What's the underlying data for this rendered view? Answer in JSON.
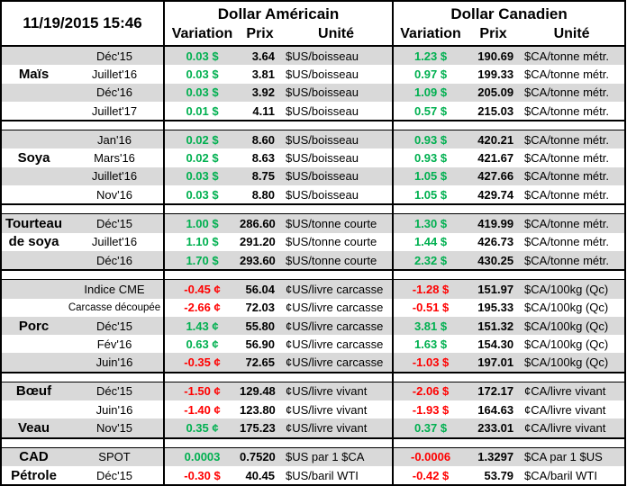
{
  "header": {
    "timestamp": "11/19/2015 15:46",
    "usd_title": "Dollar Américain",
    "cad_title": "Dollar Canadien",
    "variation_label": "Variation",
    "price_label": "Prix",
    "unit_label": "Unité"
  },
  "colors": {
    "up": "#00b050",
    "down": "#ff0000",
    "shade": "#d9d9d9"
  },
  "groups": [
    {
      "rows": [
        {
          "label": "",
          "contract": "Déc'15",
          "us_var": "0.03 $",
          "us_dir": "up",
          "us_price": "3.64",
          "us_unit": "$US/boisseau",
          "ca_var": "1.23 $",
          "ca_dir": "up",
          "ca_price": "190.69",
          "ca_unit": "$CA/tonne métr."
        },
        {
          "label": "Maïs",
          "contract": "Juillet'16",
          "us_var": "0.03 $",
          "us_dir": "up",
          "us_price": "3.81",
          "us_unit": "$US/boisseau",
          "ca_var": "0.97 $",
          "ca_dir": "up",
          "ca_price": "199.33",
          "ca_unit": "$CA/tonne métr."
        },
        {
          "label": "",
          "contract": "Déc'16",
          "us_var": "0.03 $",
          "us_dir": "up",
          "us_price": "3.92",
          "us_unit": "$US/boisseau",
          "ca_var": "1.09 $",
          "ca_dir": "up",
          "ca_price": "205.09",
          "ca_unit": "$CA/tonne métr."
        },
        {
          "label": "",
          "contract": "Juillet'17",
          "us_var": "0.01 $",
          "us_dir": "up",
          "us_price": "4.11",
          "us_unit": "$US/boisseau",
          "ca_var": "0.57 $",
          "ca_dir": "up",
          "ca_price": "215.03",
          "ca_unit": "$CA/tonne métr."
        }
      ]
    },
    {
      "rows": [
        {
          "label": "",
          "contract": "Jan'16",
          "us_var": "0.02 $",
          "us_dir": "up",
          "us_price": "8.60",
          "us_unit": "$US/boisseau",
          "ca_var": "0.93 $",
          "ca_dir": "up",
          "ca_price": "420.21",
          "ca_unit": "$CA/tonne métr."
        },
        {
          "label": "Soya",
          "contract": "Mars'16",
          "us_var": "0.02 $",
          "us_dir": "up",
          "us_price": "8.63",
          "us_unit": "$US/boisseau",
          "ca_var": "0.93 $",
          "ca_dir": "up",
          "ca_price": "421.67",
          "ca_unit": "$CA/tonne métr."
        },
        {
          "label": "",
          "contract": "Juillet'16",
          "us_var": "0.03 $",
          "us_dir": "up",
          "us_price": "8.75",
          "us_unit": "$US/boisseau",
          "ca_var": "1.05 $",
          "ca_dir": "up",
          "ca_price": "427.66",
          "ca_unit": "$CA/tonne métr."
        },
        {
          "label": "",
          "contract": "Nov'16",
          "us_var": "0.03 $",
          "us_dir": "up",
          "us_price": "8.80",
          "us_unit": "$US/boisseau",
          "ca_var": "1.05 $",
          "ca_dir": "up",
          "ca_price": "429.74",
          "ca_unit": "$CA/tonne métr."
        }
      ]
    },
    {
      "rows": [
        {
          "label": "Tourteau",
          "contract": "Déc'15",
          "us_var": "1.00 $",
          "us_dir": "up",
          "us_price": "286.60",
          "us_unit": "$US/tonne courte",
          "ca_var": "1.30 $",
          "ca_dir": "up",
          "ca_price": "419.99",
          "ca_unit": "$CA/tonne métr."
        },
        {
          "label": "de soya",
          "contract": "Juillet'16",
          "us_var": "1.10 $",
          "us_dir": "up",
          "us_price": "291.20",
          "us_unit": "$US/tonne courte",
          "ca_var": "1.44 $",
          "ca_dir": "up",
          "ca_price": "426.73",
          "ca_unit": "$CA/tonne métr."
        },
        {
          "label": "",
          "contract": "Déc'16",
          "us_var": "1.70 $",
          "us_dir": "up",
          "us_price": "293.60",
          "us_unit": "$US/tonne courte",
          "ca_var": "2.32 $",
          "ca_dir": "up",
          "ca_price": "430.25",
          "ca_unit": "$CA/tonne métr."
        }
      ]
    },
    {
      "rows": [
        {
          "label": "",
          "contract": "Indice CME",
          "us_var": "-0.45 ¢",
          "us_dir": "down",
          "us_price": "56.04",
          "us_unit": "¢US/livre carcasse",
          "ca_var": "-1.28 $",
          "ca_dir": "down",
          "ca_price": "151.97",
          "ca_unit": "$CA/100kg (Qc)"
        },
        {
          "label": "",
          "contract": "Carcasse découpée",
          "small": true,
          "us_var": "-2.66 ¢",
          "us_dir": "down",
          "us_price": "72.03",
          "us_unit": "¢US/livre carcasse",
          "ca_var": "-0.51 $",
          "ca_dir": "down",
          "ca_price": "195.33",
          "ca_unit": "$CA/100kg (Qc)"
        },
        {
          "label": "Porc",
          "contract": "Déc'15",
          "us_var": "1.43 ¢",
          "us_dir": "up",
          "us_price": "55.80",
          "us_unit": "¢US/livre carcasse",
          "ca_var": "3.81 $",
          "ca_dir": "up",
          "ca_price": "151.32",
          "ca_unit": "$CA/100kg (Qc)"
        },
        {
          "label": "",
          "contract": "Fév'16",
          "us_var": "0.63 ¢",
          "us_dir": "up",
          "us_price": "56.90",
          "us_unit": "¢US/livre carcasse",
          "ca_var": "1.63 $",
          "ca_dir": "up",
          "ca_price": "154.30",
          "ca_unit": "$CA/100kg (Qc)"
        },
        {
          "label": "",
          "contract": "Juin'16",
          "us_var": "-0.35 ¢",
          "us_dir": "down",
          "us_price": "72.65",
          "us_unit": "¢US/livre carcasse",
          "ca_var": "-1.03 $",
          "ca_dir": "down",
          "ca_price": "197.01",
          "ca_unit": "$CA/100kg (Qc)"
        }
      ]
    },
    {
      "rows": [
        {
          "label": "Bœuf",
          "contract": "Déc'15",
          "us_var": "-1.50 ¢",
          "us_dir": "down",
          "us_price": "129.48",
          "us_unit": "¢US/livre vivant",
          "ca_var": "-2.06 $",
          "ca_dir": "down",
          "ca_price": "172.17",
          "ca_unit": "¢CA/livre vivant"
        },
        {
          "label": "",
          "contract": "Juin'16",
          "us_var": "-1.40 ¢",
          "us_dir": "down",
          "us_price": "123.80",
          "us_unit": "¢US/livre vivant",
          "ca_var": "-1.93 $",
          "ca_dir": "down",
          "ca_price": "164.63",
          "ca_unit": "¢CA/livre vivant"
        },
        {
          "label": "Veau",
          "contract": "Nov'15",
          "us_var": "0.35 ¢",
          "us_dir": "up",
          "us_price": "175.23",
          "us_unit": "¢US/livre vivant",
          "ca_var": "0.37 $",
          "ca_dir": "up",
          "ca_price": "233.01",
          "ca_unit": "¢CA/livre vivant"
        }
      ]
    },
    {
      "rows": [
        {
          "label": "CAD",
          "contract": "SPOT",
          "us_var": "0.0003",
          "us_dir": "up",
          "us_price": "0.7520",
          "us_unit": "$US par 1 $CA",
          "ca_var": "-0.0006",
          "ca_dir": "down",
          "ca_price": "1.3297",
          "ca_unit": "$CA par 1 $US"
        },
        {
          "label": "Pétrole",
          "contract": "Déc'15",
          "us_var": "-0.30 $",
          "us_dir": "down",
          "us_price": "40.45",
          "us_unit": "$US/baril WTI",
          "ca_var": "-0.42 $",
          "ca_dir": "down",
          "ca_price": "53.79",
          "ca_unit": "$CA/baril WTI"
        }
      ]
    }
  ]
}
